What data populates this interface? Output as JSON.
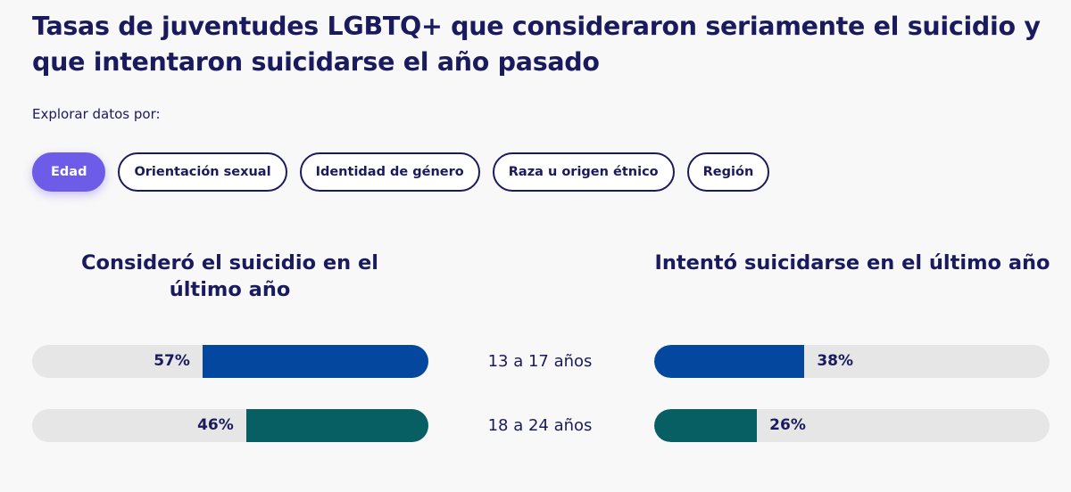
{
  "title": "Tasas de juventudes LGBTQ+ que consideraron seriamente el suicidio y que intentaron suicidarse el año pasado",
  "explore_label": "Explorar datos por:",
  "filters": [
    {
      "label": "Edad",
      "active": true
    },
    {
      "label": "Orientación sexual",
      "active": false
    },
    {
      "label": "Identidad de género",
      "active": false
    },
    {
      "label": "Raza u origen étnico",
      "active": false
    },
    {
      "label": "Región",
      "active": false
    }
  ],
  "chart_data": {
    "type": "bar",
    "categories": [
      "13 a 17 años",
      "18 a 24 años"
    ],
    "series": [
      {
        "name": "Consideró el suicidio en el último año",
        "values": [
          57,
          46
        ],
        "labels": [
          "57%",
          "46%"
        ]
      },
      {
        "name": "Intentó suicidarse en el último año",
        "values": [
          38,
          26
        ],
        "labels": [
          "38%",
          "26%"
        ]
      }
    ],
    "colors": [
      "#04479f",
      "#075f63"
    ],
    "track_color": "#e6e6e6",
    "ylim": [
      0,
      100
    ]
  }
}
